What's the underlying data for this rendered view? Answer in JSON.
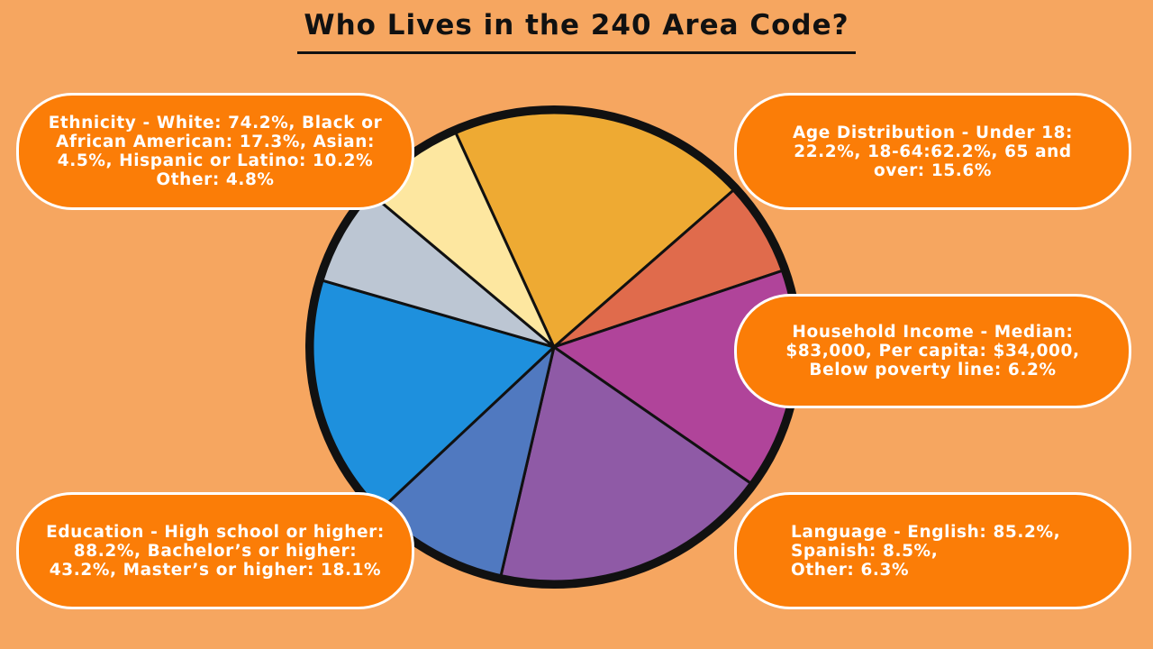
{
  "title": "Who Lives in the 240 Area Code?",
  "boxes": [
    {
      "id": "ethnicity",
      "lines": [
        "Ethnicity - White: 74.2%, Black or",
        "African American: 17.3%, Asian:",
        "4.5%, Hispanic or Latino: 10.2%",
        "Other: 4.8%"
      ]
    },
    {
      "id": "age",
      "lines": [
        "Age Distribution - Under 18:",
        "22.2%, 18-64:62.2%, 65 and",
        "over: 15.6%"
      ]
    },
    {
      "id": "income",
      "lines": [
        "Household Income - Median:",
        "$83,000, Per capita: $34,000,",
        "Below poverty line: 6.2%"
      ]
    },
    {
      "id": "education",
      "lines": [
        "Education - High school or higher:",
        "88.2%, Bachelor’s or higher:",
        "43.2%, Master’s or higher: 18.1%"
      ]
    },
    {
      "id": "language",
      "lines": [
        "Language - English: 85.2%,",
        "Spanish: 8.5%,",
        "Other: 6.3%"
      ]
    }
  ]
}
